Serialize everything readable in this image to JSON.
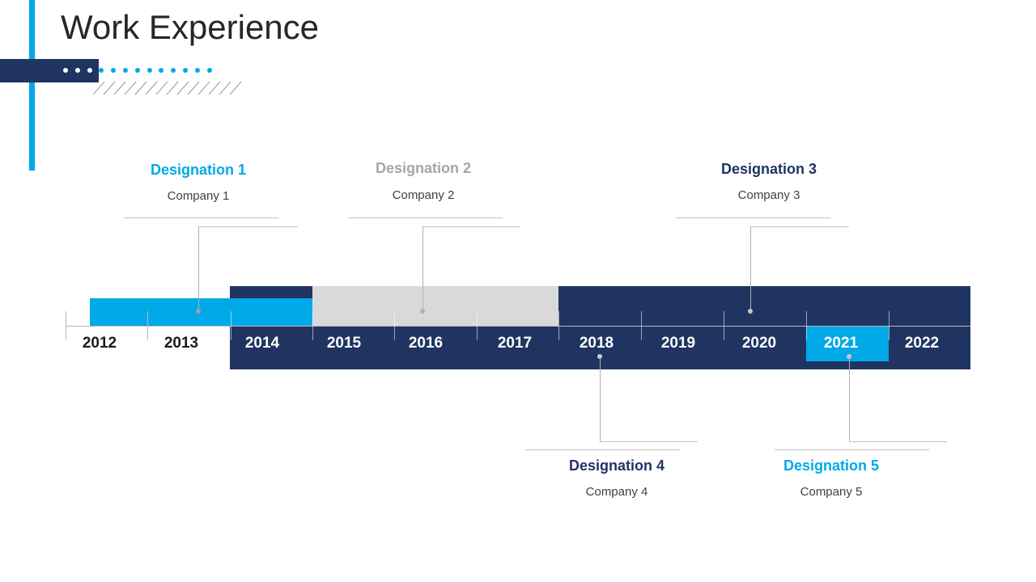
{
  "page": {
    "title": "Work Experience"
  },
  "colors": {
    "navy": "#1f3461",
    "cyan": "#00a9e8",
    "grey": "#d9d9d9",
    "grey_text": "#a6a6a6"
  },
  "timeline": {
    "years": [
      "2012",
      "2013",
      "2014",
      "2015",
      "2016",
      "2017",
      "2018",
      "2019",
      "2020",
      "2021",
      "2022"
    ]
  },
  "positions": [
    {
      "designation": "Designation 1",
      "company": "Company 1",
      "color": "#00a9e8"
    },
    {
      "designation": "Designation 2",
      "company": "Company 2",
      "color": "#a6a6a6"
    },
    {
      "designation": "Designation 3",
      "company": "Company 3",
      "color": "#1f3461"
    },
    {
      "designation": "Designation 4",
      "company": "Company 4",
      "color": "#1f3461"
    },
    {
      "designation": "Designation 5",
      "company": "Company 5",
      "color": "#00a9e8"
    }
  ]
}
